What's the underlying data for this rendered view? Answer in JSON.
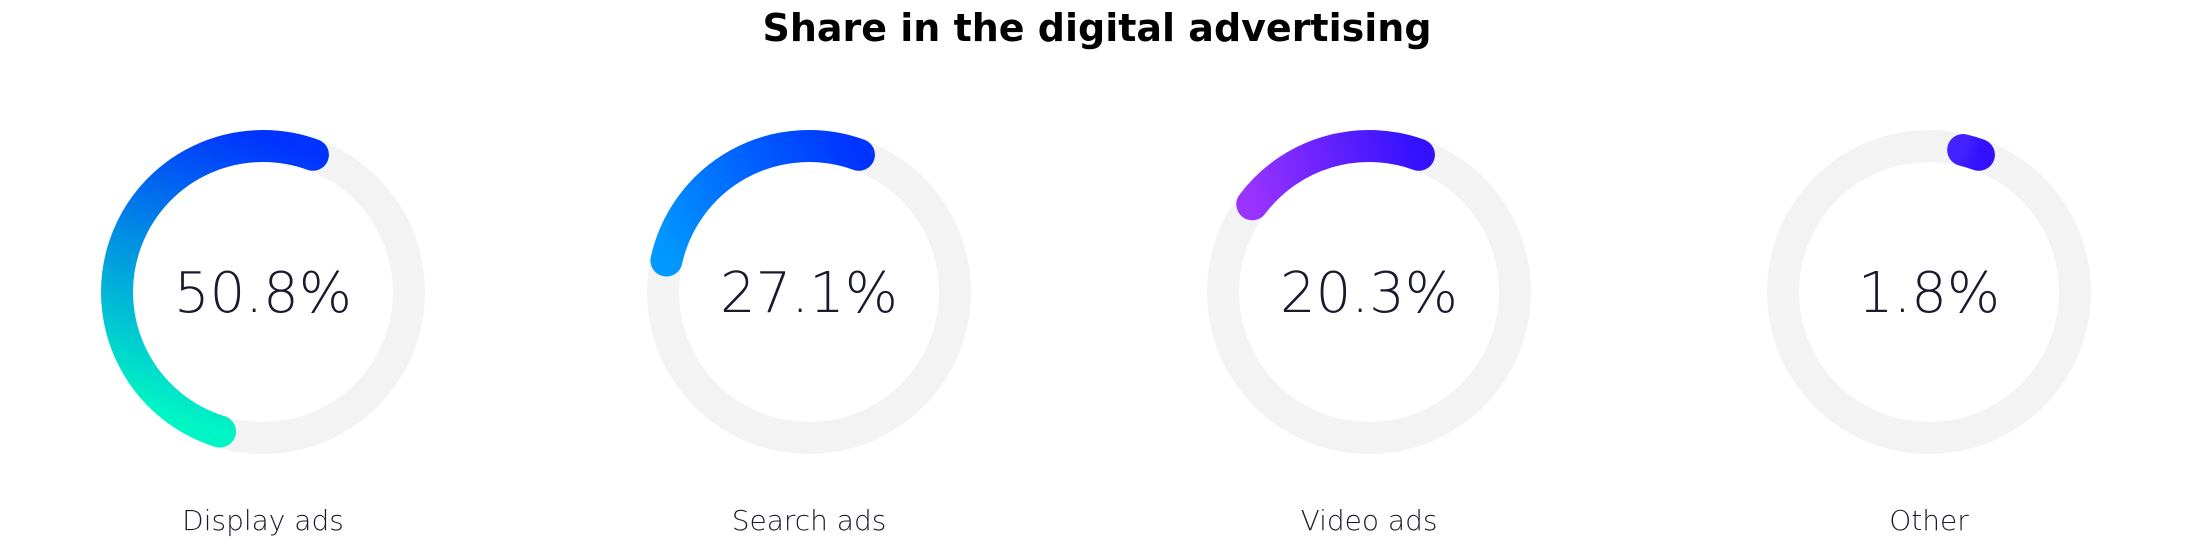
{
  "chart_data": {
    "type": "pie",
    "title": "Share in the digital advertising",
    "unit": "%",
    "categories": [
      "Display ads",
      "Search ads",
      "Video ads",
      "Other"
    ],
    "values": [
      50.8,
      27.1,
      20.3,
      1.8
    ],
    "value_labels": [
      "50.8%",
      "27.1%",
      "20.3%",
      "1.8%"
    ],
    "track_color": "#f3f3f3",
    "gradients": [
      [
        "#00f5c4",
        "#0033ff"
      ],
      [
        "#0099ff",
        "#0033ff"
      ],
      [
        "#9933ff",
        "#3311ff"
      ],
      [
        "#4422ff",
        "#3311ff"
      ]
    ]
  }
}
